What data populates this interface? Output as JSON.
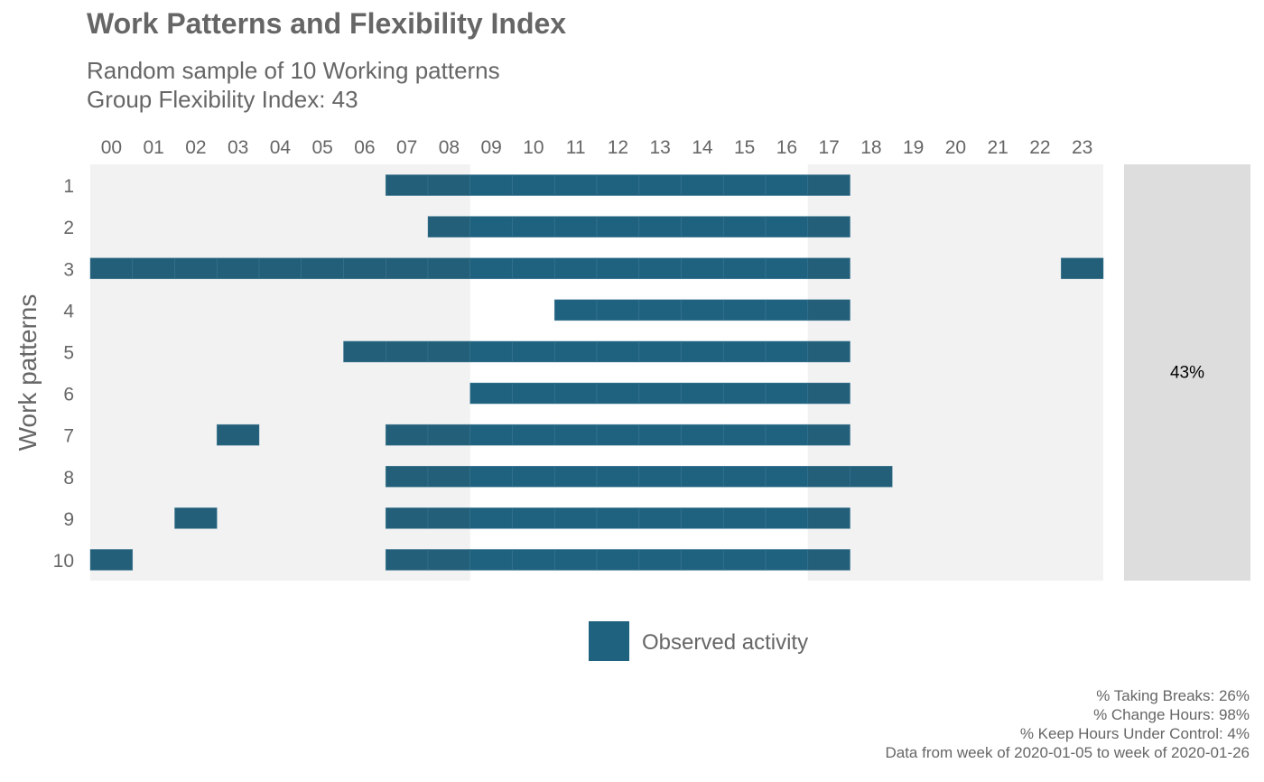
{
  "title": "Work Patterns and Flexibility Index",
  "subtitle_lines": [
    "Random sample of 10 Working patterns",
    "Group Flexibility Index: 43"
  ],
  "caption_lines": [
    "% Taking Breaks: 26%",
    "% Change Hours: 98%",
    "% Keep Hours Under Control: 4%",
    "Data from week of 2020-01-05 to week of 2020-01-26"
  ],
  "colors": {
    "active": "#1F6280",
    "active_offhours": "#245F7A",
    "offhours_bg": "#F2F2F2",
    "index_panel_bg": "#DDDDDD"
  },
  "chart_data": {
    "type": "heatmap",
    "x": [
      "00",
      "01",
      "02",
      "03",
      "04",
      "05",
      "06",
      "07",
      "08",
      "09",
      "10",
      "11",
      "12",
      "13",
      "14",
      "15",
      "16",
      "17",
      "18",
      "19",
      "20",
      "21",
      "22",
      "23"
    ],
    "ylabel": "Work patterns",
    "y": [
      "1",
      "2",
      "3",
      "4",
      "5",
      "6",
      "7",
      "8",
      "9",
      "10"
    ],
    "core_hours": [
      9,
      17
    ],
    "legend": {
      "label": "Observed activity",
      "placement": "bottom"
    },
    "patterns": [
      {
        "pattern": "1",
        "active_hours": [
          7,
          8,
          9,
          10,
          11,
          12,
          13,
          14,
          15,
          16,
          17
        ]
      },
      {
        "pattern": "2",
        "active_hours": [
          8,
          9,
          10,
          11,
          12,
          13,
          14,
          15,
          16,
          17
        ]
      },
      {
        "pattern": "3",
        "active_hours": [
          0,
          1,
          2,
          3,
          4,
          5,
          6,
          7,
          8,
          9,
          10,
          11,
          12,
          13,
          14,
          15,
          16,
          17,
          23
        ]
      },
      {
        "pattern": "4",
        "active_hours": [
          11,
          12,
          13,
          14,
          15,
          16,
          17
        ]
      },
      {
        "pattern": "5",
        "active_hours": [
          6,
          7,
          8,
          9,
          10,
          11,
          12,
          13,
          14,
          15,
          16,
          17
        ]
      },
      {
        "pattern": "6",
        "active_hours": [
          9,
          10,
          11,
          12,
          13,
          14,
          15,
          16,
          17
        ]
      },
      {
        "pattern": "7",
        "active_hours": [
          3,
          7,
          8,
          9,
          10,
          11,
          12,
          13,
          14,
          15,
          16,
          17
        ]
      },
      {
        "pattern": "8",
        "active_hours": [
          7,
          8,
          9,
          10,
          11,
          12,
          13,
          14,
          15,
          16,
          17,
          18
        ]
      },
      {
        "pattern": "9",
        "active_hours": [
          2,
          7,
          8,
          9,
          10,
          11,
          12,
          13,
          14,
          15,
          16,
          17
        ]
      },
      {
        "pattern": "10",
        "active_hours": [
          0,
          7,
          8,
          9,
          10,
          11,
          12,
          13,
          14,
          15,
          16,
          17
        ]
      }
    ],
    "flexibility_index": {
      "value": 43,
      "label": "43%"
    }
  }
}
